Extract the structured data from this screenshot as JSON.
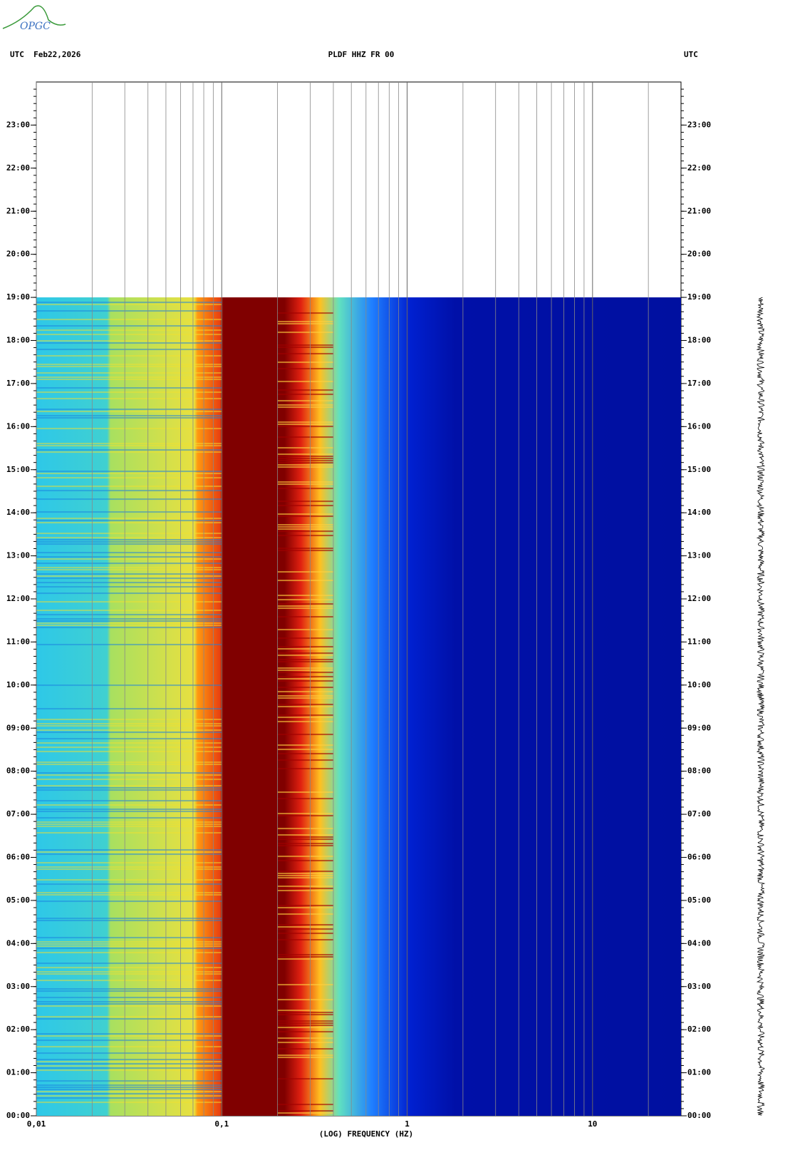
{
  "logo": "OPGC",
  "chart_data": {
    "type": "spectrogram",
    "header_left": "UTC  Feb22,2026",
    "title": "PLDF HHZ FR 00",
    "header_right": "UTC",
    "x_label": "(LOG) FREQUENCY (HZ)",
    "x_log": true,
    "xlim": [
      0.01,
      30
    ],
    "xticks": [
      {
        "value": 0.01,
        "label": "0,01"
      },
      {
        "value": 0.1,
        "label": "0,1"
      },
      1,
      10
    ],
    "ylim": [
      0,
      24
    ],
    "yticks": [
      {
        "value": 0,
        "label": "00:00"
      },
      {
        "value": 1,
        "label": "01:00"
      },
      {
        "value": 2,
        "label": "02:00"
      },
      {
        "value": 3,
        "label": "03:00"
      },
      {
        "value": 4,
        "label": "04:00"
      },
      {
        "value": 5,
        "label": "05:00"
      },
      {
        "value": 6,
        "label": "06:00"
      },
      {
        "value": 7,
        "label": "07:00"
      },
      {
        "value": 8,
        "label": "08:00"
      },
      {
        "value": 9,
        "label": "09:00"
      },
      {
        "value": 10,
        "label": "10:00"
      },
      {
        "value": 11,
        "label": "11:00"
      },
      {
        "value": 12,
        "label": "12:00"
      },
      {
        "value": 13,
        "label": "13:00"
      },
      {
        "value": 14,
        "label": "14:00"
      },
      {
        "value": 15,
        "label": "15:00"
      },
      {
        "value": 16,
        "label": "16:00"
      },
      {
        "value": 17,
        "label": "17:00"
      },
      {
        "value": 18,
        "label": "18:00"
      },
      {
        "value": 19,
        "label": "19:00"
      },
      {
        "value": 20,
        "label": "20:00"
      },
      {
        "value": 21,
        "label": "21:00"
      },
      {
        "value": 22,
        "label": "22:00"
      },
      {
        "value": 23,
        "label": "23:00"
      }
    ],
    "data_end": 19
  }
}
